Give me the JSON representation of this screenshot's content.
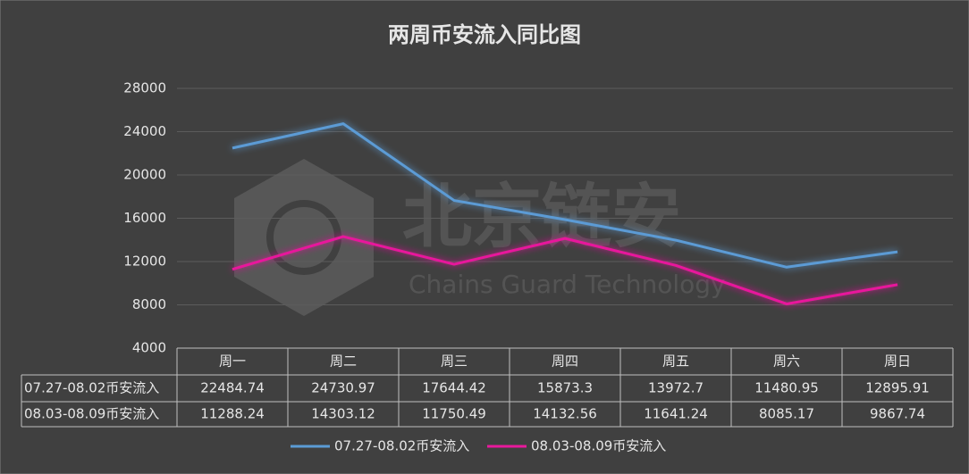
{
  "chart_data": {
    "type": "line",
    "title": "两周币安流入同比图",
    "categories": [
      "周一",
      "周二",
      "周三",
      "周四",
      "周五",
      "周六",
      "周日"
    ],
    "series": [
      {
        "name": "07.27-08.02币安流入",
        "color": "#5b9bd5",
        "values": [
          22484.74,
          24730.97,
          17644.42,
          15873.3,
          13972.7,
          11480.95,
          12895.91
        ]
      },
      {
        "name": "08.03-08.09币安流入",
        "color": "#e8199c",
        "values": [
          11288.24,
          14303.12,
          11750.49,
          14132.56,
          11641.24,
          8085.17,
          9867.74
        ]
      }
    ],
    "ylim": [
      4000,
      28000
    ],
    "yticks": [
      4000,
      8000,
      12000,
      16000,
      20000,
      24000,
      28000
    ],
    "grid": true,
    "data_table": true,
    "legend": "bottom",
    "watermark": {
      "text": "北京链安",
      "subtext": "Chains Guard Technology"
    }
  }
}
